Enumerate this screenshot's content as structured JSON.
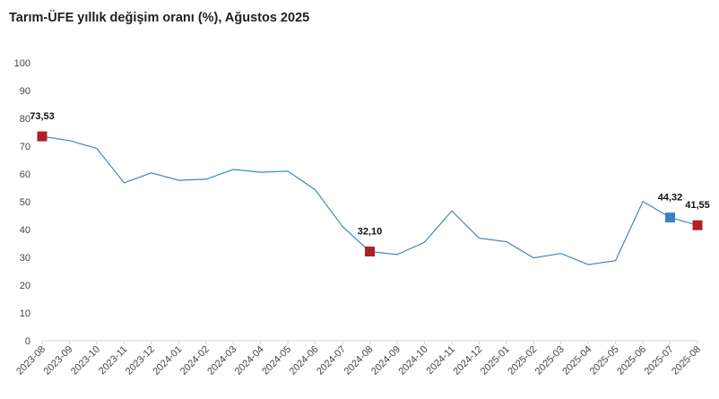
{
  "chart_data": {
    "type": "line",
    "title": "Tarım-ÜFE yıllık değişim oranı (%), Ağustos 2025",
    "xlabel": "",
    "ylabel": "",
    "ylim": [
      0,
      100
    ],
    "yticks": [
      "0",
      "10",
      "20",
      "30",
      "40",
      "50",
      "60",
      "70",
      "80",
      "90",
      "100"
    ],
    "grid": false,
    "categories": [
      "2023-08",
      "2023-09",
      "2023-10",
      "2023-11",
      "2023-12",
      "2024-01",
      "2024-02",
      "2024-03",
      "2024-04",
      "2024-05",
      "2024-06",
      "2024-07",
      "2024-08",
      "2024-09",
      "2024-10",
      "2024-11",
      "2024-12",
      "2025-01",
      "2025-02",
      "2025-03",
      "2025-04",
      "2025-05",
      "2025-06",
      "2025-07",
      "2025-08"
    ],
    "series": [
      {
        "values": [
          73.53,
          72.0,
          69.2,
          56.8,
          60.4,
          57.7,
          58.1,
          61.6,
          60.6,
          61.0,
          54.3,
          41.1,
          32.1,
          31.0,
          35.4,
          46.7,
          36.9,
          35.6,
          29.8,
          31.4,
          27.4,
          28.8,
          50.1,
          44.32,
          41.55
        ],
        "color": "#3f87c2"
      }
    ],
    "markers": [
      {
        "index": 0,
        "label": "73,53",
        "color": "#b01f24"
      },
      {
        "index": 12,
        "label": "32,10",
        "color": "#b01f24"
      },
      {
        "index": 23,
        "label": "44,32",
        "color": "#3a82c4"
      },
      {
        "index": 24,
        "label": "41,55",
        "color": "#b01f24"
      }
    ]
  }
}
